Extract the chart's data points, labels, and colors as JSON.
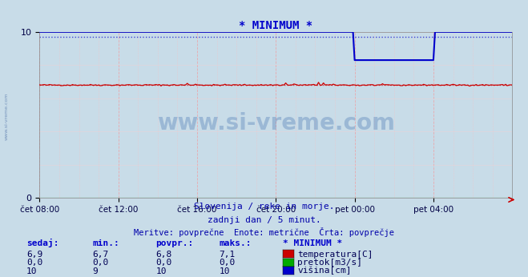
{
  "title": "* MINIMUM *",
  "title_color": "#0000cc",
  "bg_color": "#c8dce8",
  "plot_bg_color": "#c8dce8",
  "ylim": [
    0,
    10
  ],
  "xlim": [
    0,
    288
  ],
  "xtick_labels": [
    "čet 08:00",
    "čet 12:00",
    "čet 16:00",
    "čet 20:00",
    "pet 00:00",
    "pet 04:00"
  ],
  "xtick_positions": [
    0,
    48,
    96,
    144,
    192,
    240
  ],
  "ytick_labels": [
    "0",
    "10"
  ],
  "ytick_positions": [
    0,
    10
  ],
  "temp_color": "#cc0000",
  "pretok_color": "#00aa00",
  "visina_color": "#0000cc",
  "watermark_text": "www.si-vreme.com",
  "watermark_color": "#3366aa",
  "footer_line1": "Slovenija / reke in morje.",
  "footer_line2": "zadnji dan / 5 minut.",
  "footer_line3": "Meritve: povprečne  Enote: metrične  Črta: povprečje",
  "footer_color": "#0000aa",
  "legend_title": "* MINIMUM *",
  "temp_avg": 6.8,
  "visina_avg": 9.7,
  "temp_sedaj": "6,9",
  "temp_min": "6,7",
  "temp_povpr": "6,8",
  "temp_maks": "7,1",
  "pretok_sedaj": "0,0",
  "pretok_min": "0,0",
  "pretok_povpr": "0,0",
  "pretok_maks": "0,0",
  "visina_sedaj": "10",
  "visina_min": "9",
  "visina_povpr": "10",
  "visina_maks": "10",
  "visina_dip_start": 192,
  "visina_dip_mid": 8.3,
  "visina_dip_end": 240
}
